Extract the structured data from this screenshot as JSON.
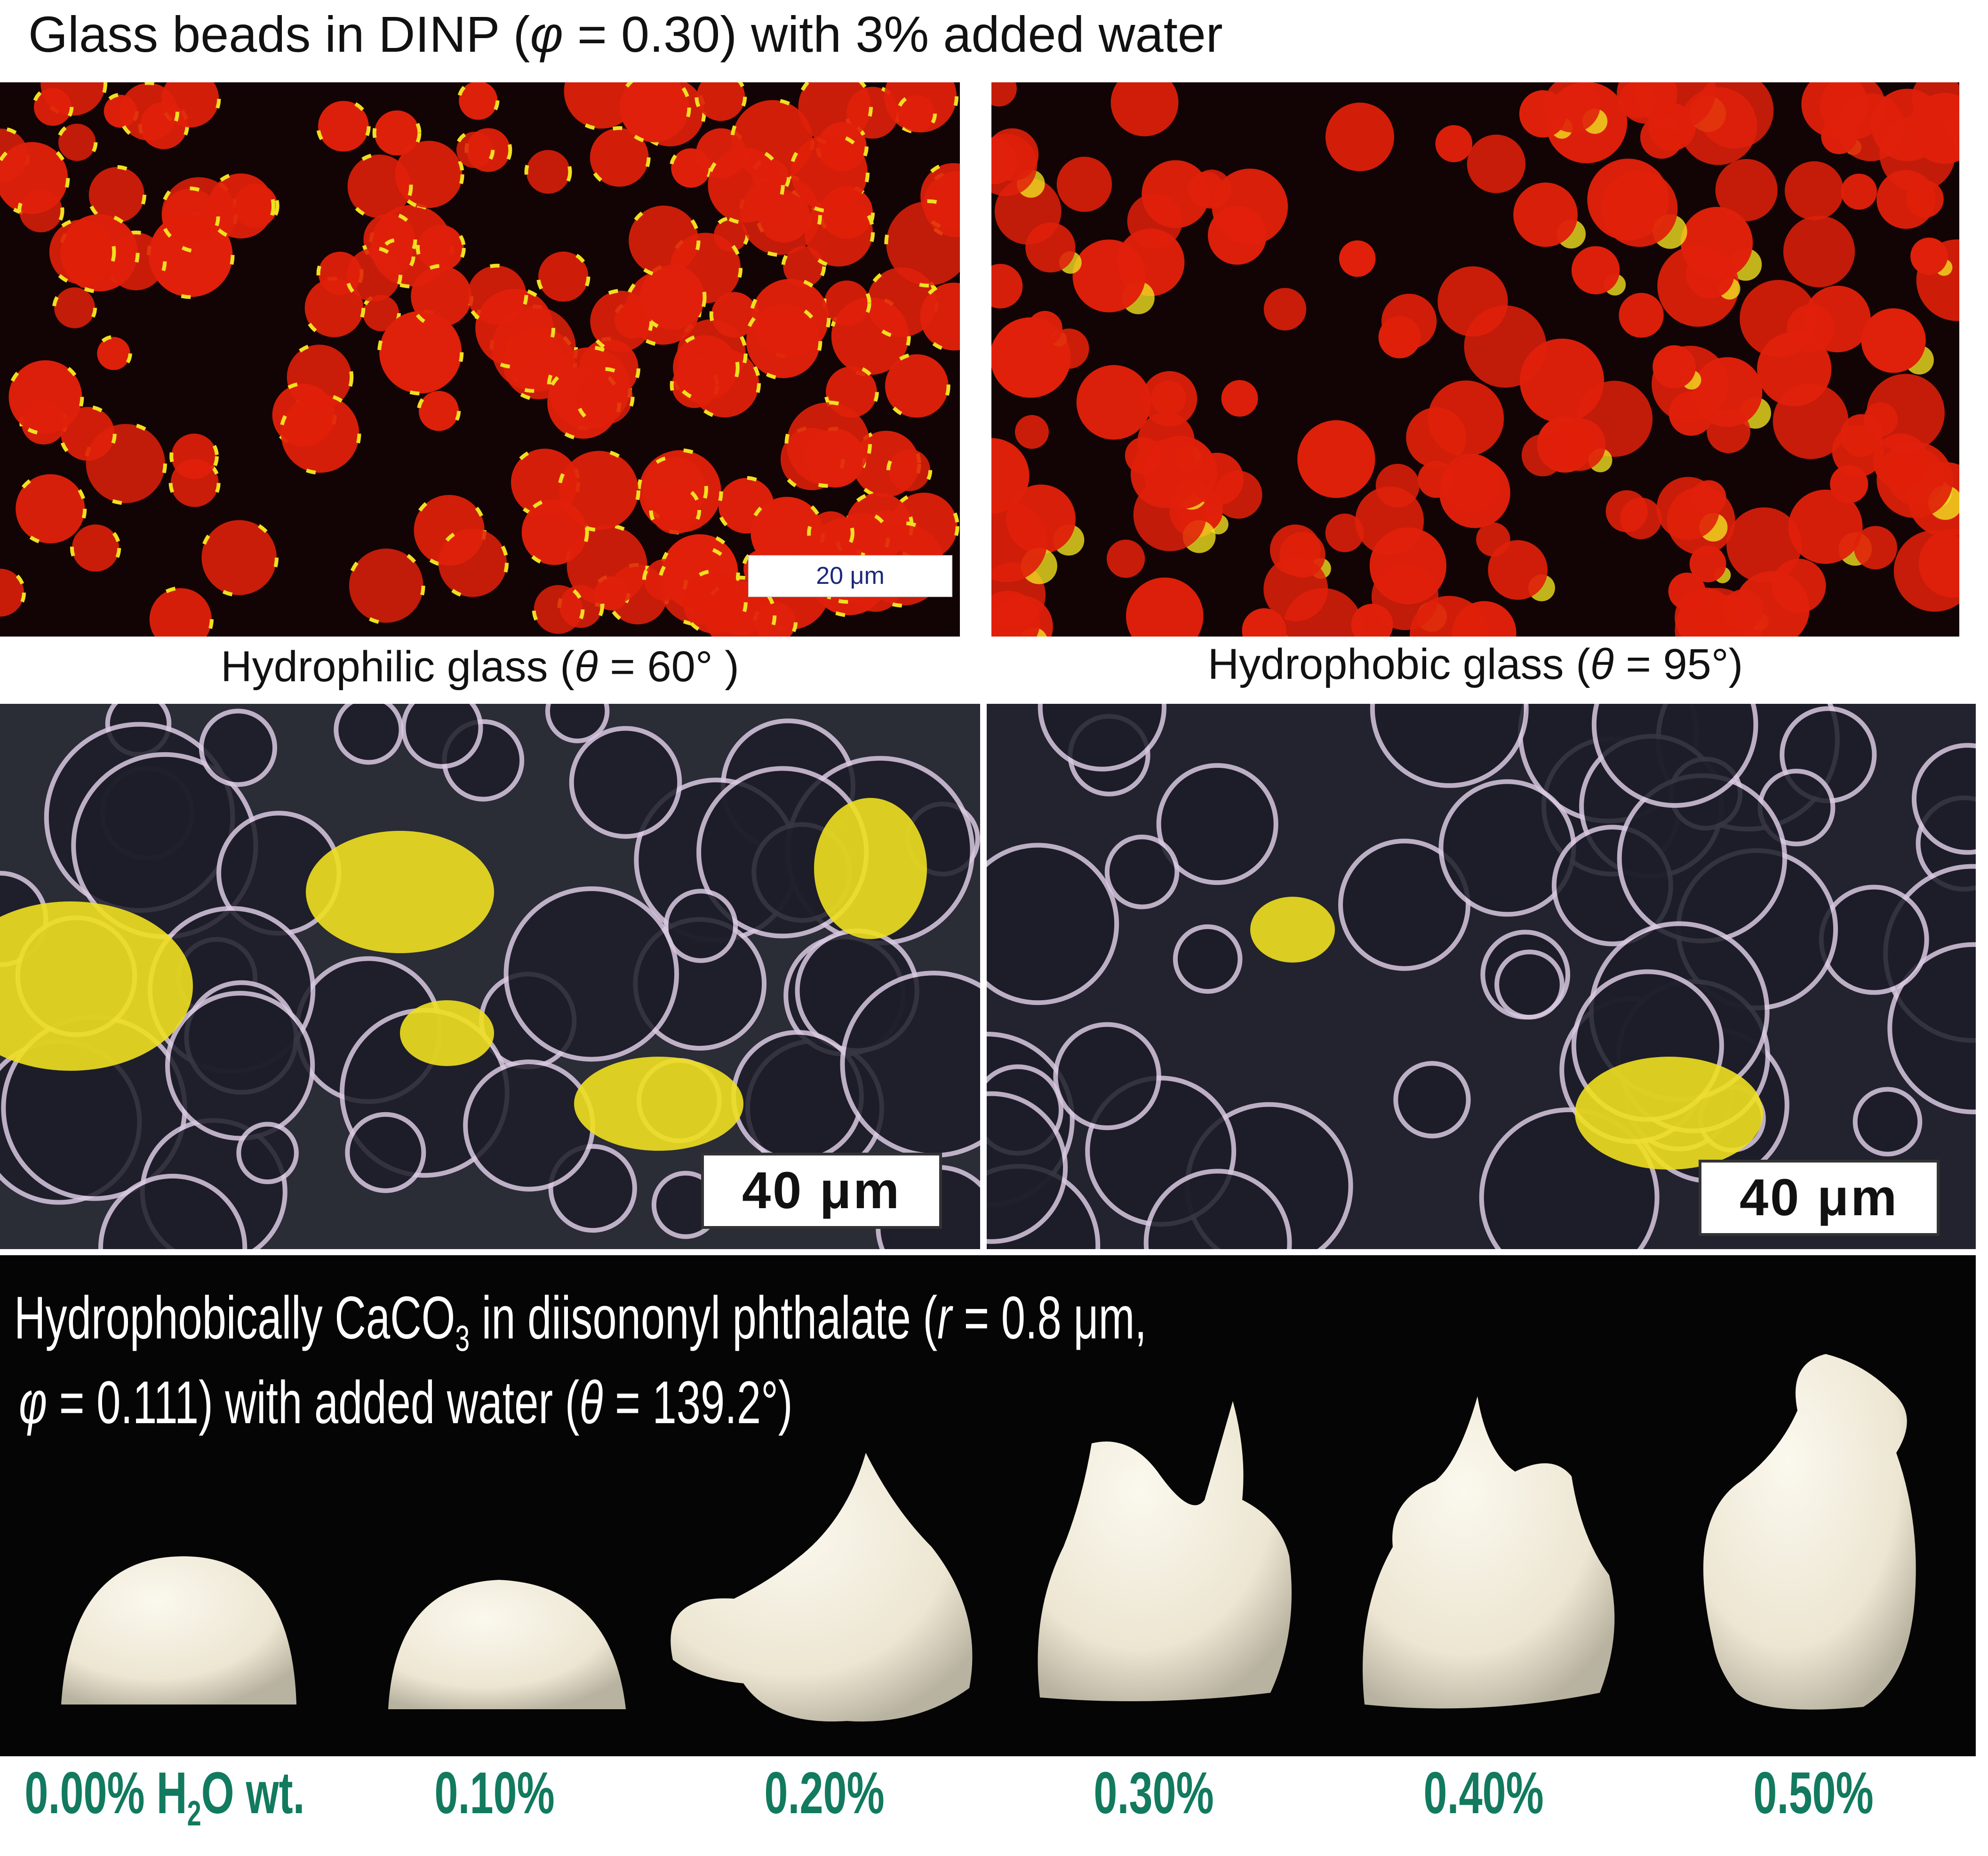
{
  "title": {
    "pre": "Glass beads in DINP (",
    "phi": "φ",
    "post": " = 0.30) with 3% added water"
  },
  "top_panels": [
    {
      "caption_pre": "Hydrophilic glass (",
      "theta": "θ",
      "caption_post": " = 60°   )",
      "scale_bar": "20 μm"
    },
    {
      "caption_pre": "Hydrophobic glass (",
      "theta": "θ",
      "caption_post": " = 95°)"
    }
  ],
  "middle_panels": [
    {
      "scale_bar": "40 μm"
    },
    {
      "scale_bar": "40 μm"
    }
  ],
  "bottom_panel": {
    "line1_a": "Hydrophobically CaCO",
    "line1_sub": "3",
    "line1_b": " in diisononyl phthalate (",
    "line1_r": "r",
    "line1_c": " = 0.8 μm,",
    "line2_phi": "φ",
    "line2_a": " = 0.111) with added water (",
    "line2_theta": "θ",
    "line2_b": " = 139.2°)"
  },
  "water_labels": [
    {
      "pre": "0.00% H",
      "sub": "2",
      "post": "O wt."
    },
    {
      "pre": "0.10%"
    },
    {
      "pre": "0.20%"
    },
    {
      "pre": "0.30%"
    },
    {
      "pre": "0.40%"
    },
    {
      "pre": "0.50%"
    }
  ],
  "colors": {
    "label_green": "#127a5e",
    "bead_red": "#e0200a",
    "water_yellow": "#f0e020"
  }
}
